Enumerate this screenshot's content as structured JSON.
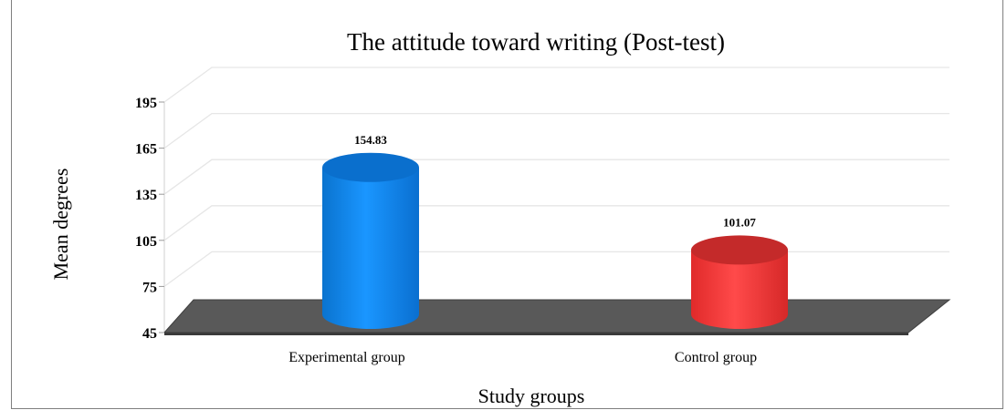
{
  "chart_data": {
    "type": "bar",
    "title": "The attitude toward writing (Post-test)",
    "xlabel": "Study groups",
    "ylabel": "Mean degrees",
    "categories": [
      "Experimental group",
      "Control group"
    ],
    "series": [
      {
        "values": [
          154.83,
          101.07
        ]
      }
    ],
    "data_labels": [
      "154.83",
      "101.07"
    ],
    "yticks": [
      45,
      75,
      105,
      135,
      165,
      195
    ],
    "ylim": [
      45,
      195
    ],
    "grid": true,
    "legend": "none",
    "style": "3d-cylinder",
    "colors": {
      "bars": [
        "#0b8af0",
        "#f03a3a"
      ],
      "bar_tops": [
        "#0a6fcd",
        "#c42a2a"
      ],
      "floor": "#595959",
      "gridline": "#e6e6e6"
    }
  }
}
